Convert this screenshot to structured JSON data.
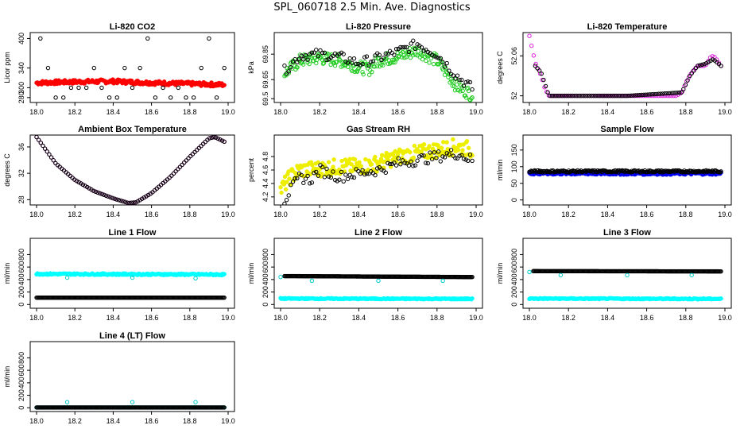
{
  "page": {
    "title": "SPL_060718  2.5 Min. Ave. Diagnostics"
  },
  "chart_data": [
    {
      "type": "scatter",
      "title": "Li-820 CO2",
      "ylabel": "Licor ppm",
      "xlim": [
        18.0,
        19.0
      ],
      "ylim": [
        270,
        412
      ],
      "xticks": [
        18.0,
        18.2,
        18.4,
        18.6,
        18.8,
        19.0
      ],
      "yticks": [
        280,
        300,
        340,
        400
      ],
      "series": [
        {
          "name": "",
          "color": "#ff0000",
          "marker": "filled",
          "kind": "band",
          "x": [
            18.0,
            18.2,
            18.4,
            18.6,
            18.8,
            18.98
          ],
          "values": [
            310,
            312,
            313,
            310,
            308,
            306
          ],
          "spread": 4
        },
        {
          "name": "",
          "color": "#000000",
          "marker": "open",
          "kind": "levels",
          "x_start": 18.02,
          "x_end": 18.98,
          "step": 0.04,
          "levels": [
            280,
            300,
            340,
            400
          ]
        }
      ]
    },
    {
      "type": "scatter",
      "title": "Li-820 Pressure",
      "ylabel": "kPa",
      "xlim": [
        18.0,
        19.0
      ],
      "ylim": [
        69.47,
        70.02
      ],
      "xticks": [
        18.0,
        18.2,
        18.4,
        18.6,
        18.8,
        19.0
      ],
      "yticks": [
        69.5,
        69.65,
        69.85
      ],
      "series": [
        {
          "name": "",
          "color": "#22cc22",
          "marker": "open",
          "kind": "band",
          "x": [
            18.02,
            18.1,
            18.2,
            18.3,
            18.4,
            18.45,
            18.5,
            18.6,
            18.7,
            18.8,
            18.9,
            18.98
          ],
          "values": [
            69.7,
            69.8,
            69.82,
            69.8,
            69.75,
            69.73,
            69.8,
            69.83,
            69.88,
            69.8,
            69.6,
            69.53
          ],
          "spread": 0.05
        },
        {
          "name": "",
          "color": "#000000",
          "marker": "open",
          "kind": "line",
          "x": [
            18.02,
            18.1,
            18.2,
            18.3,
            18.4,
            18.5,
            18.6,
            18.7,
            18.8,
            18.9,
            18.98
          ],
          "values": [
            69.72,
            69.84,
            69.85,
            69.83,
            69.78,
            69.82,
            69.87,
            69.93,
            69.85,
            69.68,
            69.58
          ],
          "spread": 0.04
        }
      ]
    },
    {
      "type": "scatter",
      "title": "Li-820 Temperature",
      "ylabel": "degrees C",
      "xlim": [
        18.0,
        19.0
      ],
      "ylim": [
        51.99,
        52.095
      ],
      "xticks": [
        18.0,
        18.2,
        18.4,
        18.6,
        18.8,
        19.0
      ],
      "yticks": [
        52.0,
        52.06
      ],
      "series": [
        {
          "name": "",
          "color": "#dd22dd",
          "marker": "open",
          "kind": "line",
          "x": [
            18.0,
            18.03,
            18.06,
            18.08,
            18.1,
            18.2,
            18.4,
            18.6,
            18.75,
            18.78,
            18.8,
            18.83,
            18.86,
            18.9,
            18.93,
            18.95,
            18.98
          ],
          "values": [
            52.09,
            52.05,
            52.03,
            52.01,
            52.0,
            52.0,
            52.0,
            52.0,
            52.0,
            52.005,
            52.02,
            52.035,
            52.045,
            52.045,
            52.06,
            52.058,
            52.045
          ],
          "spread": 0
        },
        {
          "name": "",
          "color": "#000000",
          "marker": "open",
          "kind": "line",
          "x": [
            18.03,
            18.06,
            18.1,
            18.5,
            18.78,
            18.82,
            18.86,
            18.9,
            18.94,
            18.98
          ],
          "values": [
            52.045,
            52.035,
            52.0,
            52.0,
            52.005,
            52.03,
            52.045,
            52.048,
            52.055,
            52.045
          ],
          "spread": 0
        }
      ]
    },
    {
      "type": "scatter",
      "title": "Ambient Box Temperature",
      "ylabel": "degrees C",
      "xlim": [
        18.0,
        19.0
      ],
      "ylim": [
        27.2,
        37.8
      ],
      "xticks": [
        18.0,
        18.2,
        18.4,
        18.6,
        18.8,
        19.0
      ],
      "yticks": [
        28,
        32,
        36
      ],
      "series": [
        {
          "name": "",
          "color": "#dd22dd",
          "marker": "open",
          "kind": "line",
          "x": [
            18.0,
            18.05,
            18.1,
            18.2,
            18.3,
            18.4,
            18.48,
            18.52,
            18.6,
            18.7,
            18.8,
            18.9,
            18.93,
            18.98
          ],
          "values": [
            37.5,
            35.5,
            33.5,
            31.0,
            29.3,
            28.2,
            27.5,
            27.6,
            29.0,
            31.5,
            34.5,
            37.3,
            37.5,
            36.8
          ],
          "spread": 0
        },
        {
          "name": "",
          "color": "#000000",
          "marker": "open",
          "kind": "line",
          "x": [
            18.0,
            18.05,
            18.1,
            18.2,
            18.3,
            18.4,
            18.48,
            18.52,
            18.6,
            18.7,
            18.8,
            18.9,
            18.93,
            18.98
          ],
          "values": [
            37.5,
            35.5,
            33.5,
            31.0,
            29.3,
            28.2,
            27.5,
            27.6,
            29.0,
            31.5,
            34.5,
            37.3,
            37.5,
            36.8
          ],
          "spread": 0
        }
      ]
    },
    {
      "type": "scatter",
      "title": "Gas Stream RH",
      "ylabel": "percent",
      "xlim": [
        18.0,
        19.0
      ],
      "ylim": [
        4.08,
        5.12
      ],
      "xticks": [
        18.0,
        18.2,
        18.4,
        18.6,
        18.8,
        19.0
      ],
      "yticks": [
        4.2,
        4.4,
        4.6,
        4.8
      ],
      "series": [
        {
          "name": "",
          "color": "#eeee00",
          "marker": "filled",
          "kind": "band",
          "x": [
            18.0,
            18.05,
            18.1,
            18.2,
            18.3,
            18.4,
            18.5,
            18.6,
            18.7,
            18.8,
            18.9,
            18.98
          ],
          "values": [
            4.3,
            4.5,
            4.6,
            4.62,
            4.65,
            4.65,
            4.7,
            4.8,
            4.85,
            4.9,
            4.95,
            4.9
          ],
          "spread": 0.12
        },
        {
          "name": "",
          "color": "#000000",
          "marker": "open",
          "kind": "line",
          "x": [
            18.02,
            18.05,
            18.1,
            18.15,
            18.2,
            18.3,
            18.4,
            18.5,
            18.6,
            18.7,
            18.8,
            18.9,
            18.98
          ],
          "values": [
            4.15,
            4.3,
            4.5,
            4.45,
            4.6,
            4.5,
            4.55,
            4.6,
            4.7,
            4.75,
            4.8,
            4.85,
            4.75
          ],
          "spread": 0.08
        }
      ]
    },
    {
      "type": "scatter",
      "title": "Sample Flow",
      "ylabel": "ml/min",
      "xlim": [
        18.0,
        19.0
      ],
      "ylim": [
        -15,
        195
      ],
      "xticks": [
        18.0,
        18.2,
        18.4,
        18.6,
        18.8,
        19.0
      ],
      "yticks": [
        0,
        50,
        100,
        150
      ],
      "series": [
        {
          "name": "",
          "color": "#0000ee",
          "marker": "filled",
          "kind": "band",
          "x": [
            18.0,
            18.98
          ],
          "values": [
            80,
            80
          ],
          "spread": 4
        },
        {
          "name": "",
          "color": "#000000",
          "marker": "open",
          "kind": "band",
          "x": [
            18.0,
            18.98
          ],
          "values": [
            86,
            86
          ],
          "spread": 3
        }
      ]
    },
    {
      "type": "scatter",
      "title": "Line 1 Flow",
      "ylabel": "ml/min",
      "xlim": [
        18.0,
        19.0
      ],
      "ylim": [
        -60,
        1060
      ],
      "xticks": [
        18.0,
        18.2,
        18.4,
        18.6,
        18.8,
        19.0
      ],
      "yticks": [
        0,
        200,
        400,
        600,
        800
      ],
      "series": [
        {
          "name": "",
          "color": "#00ffff",
          "marker": "filled",
          "kind": "band",
          "x": [
            18.0,
            18.98
          ],
          "values": [
            490,
            480
          ],
          "spread": 12
        },
        {
          "name": "",
          "color": "#000000",
          "marker": "open",
          "kind": "band",
          "x": [
            18.0,
            18.98
          ],
          "values": [
            110,
            110
          ],
          "spread": 0
        },
        {
          "name": "",
          "color": "#00cccc",
          "marker": "open",
          "kind": "points",
          "x": [
            18.16,
            18.5,
            18.83
          ],
          "values": [
            430,
            430,
            420
          ],
          "spread": 0
        }
      ]
    },
    {
      "type": "scatter",
      "title": "Line 2 Flow",
      "ylabel": "ml/min",
      "xlim": [
        18.0,
        19.0
      ],
      "ylim": [
        -60,
        1060
      ],
      "xticks": [
        18.0,
        18.2,
        18.4,
        18.6,
        18.8,
        19.0
      ],
      "yticks": [
        0,
        200,
        400,
        600,
        800
      ],
      "series": [
        {
          "name": "",
          "color": "#00ffff",
          "marker": "filled",
          "kind": "band",
          "x": [
            18.0,
            18.98
          ],
          "values": [
            95,
            90
          ],
          "spread": 8
        },
        {
          "name": "",
          "color": "#000000",
          "marker": "open",
          "kind": "band",
          "x": [
            18.02,
            18.98
          ],
          "values": [
            455,
            440
          ],
          "spread": 0
        },
        {
          "name": "",
          "color": "#00cccc",
          "marker": "open",
          "kind": "points",
          "x": [
            18.0,
            18.16,
            18.5,
            18.83
          ],
          "values": [
            440,
            380,
            380,
            380
          ],
          "spread": 0
        }
      ]
    },
    {
      "type": "scatter",
      "title": "Line 3 Flow",
      "ylabel": "ml/min",
      "xlim": [
        18.0,
        19.0
      ],
      "ylim": [
        -60,
        1060
      ],
      "xticks": [
        18.0,
        18.2,
        18.4,
        18.6,
        18.8,
        19.0
      ],
      "yticks": [
        0,
        200,
        400,
        600,
        800
      ],
      "series": [
        {
          "name": "",
          "color": "#00ffff",
          "marker": "filled",
          "kind": "band",
          "x": [
            18.0,
            18.98
          ],
          "values": [
            95,
            90
          ],
          "spread": 8
        },
        {
          "name": "",
          "color": "#000000",
          "marker": "open",
          "kind": "band",
          "x": [
            18.02,
            18.98
          ],
          "values": [
            535,
            530
          ],
          "spread": 0
        },
        {
          "name": "",
          "color": "#00cccc",
          "marker": "open",
          "kind": "points",
          "x": [
            18.0,
            18.16,
            18.5,
            18.83
          ],
          "values": [
            520,
            470,
            470,
            470
          ],
          "spread": 0
        }
      ]
    },
    {
      "type": "scatter",
      "title": "Line 4 (LT) Flow",
      "ylabel": "ml/min",
      "xlim": [
        18.0,
        19.0
      ],
      "ylim": [
        -60,
        1060
      ],
      "xticks": [
        18.0,
        18.2,
        18.4,
        18.6,
        18.8,
        19.0
      ],
      "yticks": [
        0,
        200,
        400,
        600,
        800
      ],
      "series": [
        {
          "name": "",
          "color": "#00cccc",
          "marker": "open",
          "kind": "band",
          "x": [
            18.0,
            18.98
          ],
          "values": [
            5,
            5
          ],
          "spread": 0
        },
        {
          "name": "",
          "color": "#000000",
          "marker": "open",
          "kind": "band",
          "x": [
            18.0,
            18.98
          ],
          "values": [
            5,
            5
          ],
          "spread": 0
        },
        {
          "name": "",
          "color": "#00cccc",
          "marker": "open",
          "kind": "points",
          "x": [
            18.16,
            18.5,
            18.83
          ],
          "values": [
            90,
            90,
            90
          ],
          "spread": 0
        }
      ]
    }
  ]
}
